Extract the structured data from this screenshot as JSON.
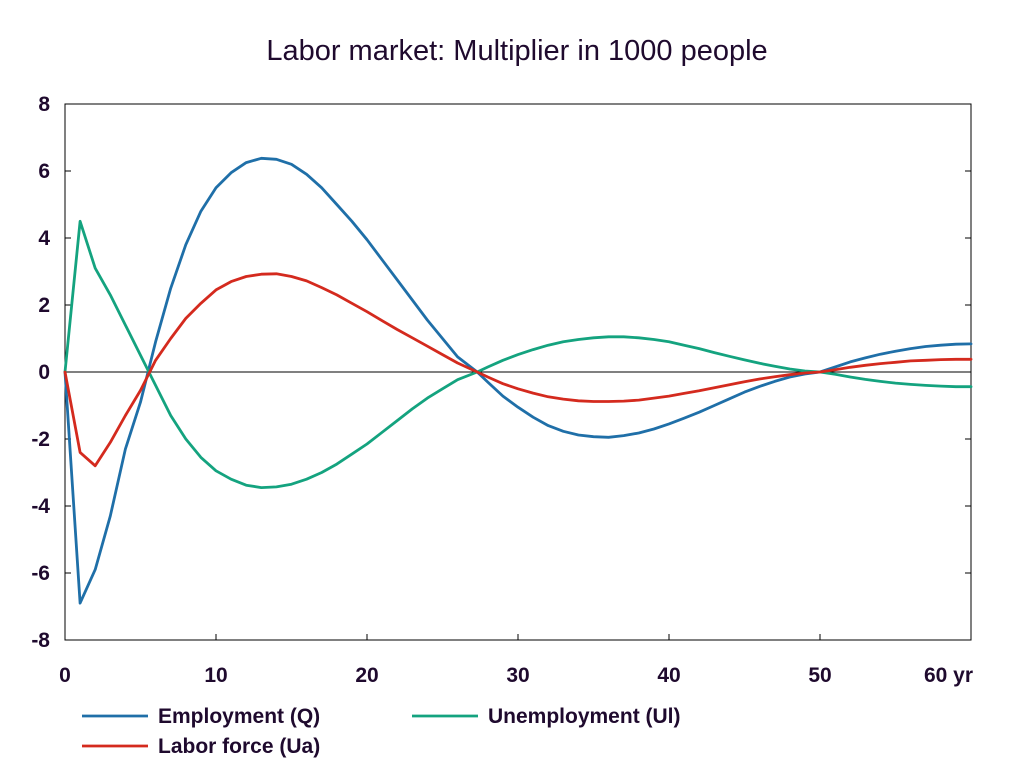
{
  "chart_data": {
    "type": "line",
    "title": "Labor market: Multiplier in 1000 people",
    "xlabel": "",
    "ylabel": "",
    "xlim": [
      0,
      60
    ],
    "ylim": [
      -8,
      8
    ],
    "x_ticks": [
      0,
      10,
      20,
      30,
      40,
      50,
      60
    ],
    "x_tick_labels": [
      "0",
      "10",
      "20",
      "30",
      "40",
      "50",
      "60 yr"
    ],
    "y_ticks": [
      -8,
      -6,
      -4,
      -2,
      0,
      2,
      4,
      6,
      8
    ],
    "y_tick_labels": [
      "-8",
      "-6",
      "-4",
      "-2",
      "0",
      "2",
      "4",
      "6",
      "8"
    ],
    "grid": false,
    "zero_line": true,
    "legend_position": "bottom",
    "series": [
      {
        "name": "Employment (Q)",
        "color": "#1f6fa8",
        "points": [
          [
            0,
            0
          ],
          [
            1,
            -6.9
          ],
          [
            2,
            -5.9
          ],
          [
            3,
            -4.3
          ],
          [
            4,
            -2.3
          ],
          [
            5,
            -0.9
          ],
          [
            6,
            0.9
          ],
          [
            7,
            2.5
          ],
          [
            8,
            3.8
          ],
          [
            9,
            4.8
          ],
          [
            10,
            5.5
          ],
          [
            11,
            5.95
          ],
          [
            12,
            6.25
          ],
          [
            13,
            6.38
          ],
          [
            14,
            6.35
          ],
          [
            15,
            6.2
          ],
          [
            16,
            5.9
          ],
          [
            17,
            5.5
          ],
          [
            18,
            5.0
          ],
          [
            19,
            4.5
          ],
          [
            20,
            3.95
          ],
          [
            21,
            3.35
          ],
          [
            22,
            2.75
          ],
          [
            23,
            2.15
          ],
          [
            24,
            1.55
          ],
          [
            25,
            1.0
          ],
          [
            26,
            0.45
          ],
          [
            27.3,
            0
          ],
          [
            28,
            -0.3
          ],
          [
            29,
            -0.72
          ],
          [
            30,
            -1.05
          ],
          [
            31,
            -1.35
          ],
          [
            32,
            -1.6
          ],
          [
            33,
            -1.77
          ],
          [
            34,
            -1.88
          ],
          [
            35,
            -1.93
          ],
          [
            36,
            -1.95
          ],
          [
            37,
            -1.9
          ],
          [
            38,
            -1.82
          ],
          [
            39,
            -1.7
          ],
          [
            40,
            -1.55
          ],
          [
            41,
            -1.38
          ],
          [
            42,
            -1.2
          ],
          [
            43,
            -1.0
          ],
          [
            44,
            -0.8
          ],
          [
            45,
            -0.6
          ],
          [
            46,
            -0.43
          ],
          [
            47,
            -0.28
          ],
          [
            48,
            -0.15
          ],
          [
            49,
            -0.06
          ],
          [
            50,
            0
          ],
          [
            51,
            0.15
          ],
          [
            52,
            0.3
          ],
          [
            53,
            0.42
          ],
          [
            54,
            0.53
          ],
          [
            55,
            0.62
          ],
          [
            56,
            0.7
          ],
          [
            57,
            0.76
          ],
          [
            58,
            0.8
          ],
          [
            59,
            0.83
          ],
          [
            60,
            0.84
          ]
        ]
      },
      {
        "name": "Unemployment (Ul)",
        "color": "#14a37f",
        "points": [
          [
            0,
            0
          ],
          [
            1,
            4.5
          ],
          [
            2,
            3.1
          ],
          [
            3,
            2.3
          ],
          [
            4,
            1.4
          ],
          [
            5,
            0.5
          ],
          [
            6,
            -0.4
          ],
          [
            7,
            -1.3
          ],
          [
            8,
            -2.0
          ],
          [
            9,
            -2.55
          ],
          [
            10,
            -2.95
          ],
          [
            11,
            -3.2
          ],
          [
            12,
            -3.38
          ],
          [
            13,
            -3.45
          ],
          [
            14,
            -3.43
          ],
          [
            15,
            -3.35
          ],
          [
            16,
            -3.2
          ],
          [
            17,
            -3.0
          ],
          [
            18,
            -2.75
          ],
          [
            19,
            -2.45
          ],
          [
            20,
            -2.15
          ],
          [
            21,
            -1.8
          ],
          [
            22,
            -1.45
          ],
          [
            23,
            -1.1
          ],
          [
            24,
            -0.78
          ],
          [
            25,
            -0.5
          ],
          [
            26,
            -0.23
          ],
          [
            27.3,
            0
          ],
          [
            28,
            0.15
          ],
          [
            29,
            0.35
          ],
          [
            30,
            0.52
          ],
          [
            31,
            0.67
          ],
          [
            32,
            0.8
          ],
          [
            33,
            0.9
          ],
          [
            34,
            0.97
          ],
          [
            35,
            1.02
          ],
          [
            36,
            1.05
          ],
          [
            37,
            1.05
          ],
          [
            38,
            1.02
          ],
          [
            39,
            0.97
          ],
          [
            40,
            0.9
          ],
          [
            41,
            0.8
          ],
          [
            42,
            0.7
          ],
          [
            43,
            0.58
          ],
          [
            44,
            0.47
          ],
          [
            45,
            0.36
          ],
          [
            46,
            0.26
          ],
          [
            47,
            0.17
          ],
          [
            48,
            0.09
          ],
          [
            49,
            0.03
          ],
          [
            50,
            0
          ],
          [
            51,
            -0.07
          ],
          [
            52,
            -0.15
          ],
          [
            53,
            -0.22
          ],
          [
            54,
            -0.28
          ],
          [
            55,
            -0.33
          ],
          [
            56,
            -0.37
          ],
          [
            57,
            -0.4
          ],
          [
            58,
            -0.42
          ],
          [
            59,
            -0.44
          ],
          [
            60,
            -0.44
          ]
        ]
      },
      {
        "name": "Labor force (Ua)",
        "color": "#d42a1e",
        "points": [
          [
            0,
            0
          ],
          [
            1,
            -2.4
          ],
          [
            2,
            -2.8
          ],
          [
            3,
            -2.1
          ],
          [
            4,
            -1.3
          ],
          [
            5,
            -0.55
          ],
          [
            6,
            0.35
          ],
          [
            7,
            1.0
          ],
          [
            8,
            1.6
          ],
          [
            9,
            2.05
          ],
          [
            10,
            2.45
          ],
          [
            11,
            2.7
          ],
          [
            12,
            2.85
          ],
          [
            13,
            2.92
          ],
          [
            14,
            2.93
          ],
          [
            15,
            2.85
          ],
          [
            16,
            2.72
          ],
          [
            17,
            2.52
          ],
          [
            18,
            2.3
          ],
          [
            19,
            2.05
          ],
          [
            20,
            1.8
          ],
          [
            21,
            1.53
          ],
          [
            22,
            1.27
          ],
          [
            23,
            1.02
          ],
          [
            24,
            0.77
          ],
          [
            25,
            0.52
          ],
          [
            26,
            0.27
          ],
          [
            27.3,
            0
          ],
          [
            28,
            -0.15
          ],
          [
            29,
            -0.35
          ],
          [
            30,
            -0.5
          ],
          [
            31,
            -0.63
          ],
          [
            32,
            -0.74
          ],
          [
            33,
            -0.81
          ],
          [
            34,
            -0.86
          ],
          [
            35,
            -0.88
          ],
          [
            36,
            -0.88
          ],
          [
            37,
            -0.87
          ],
          [
            38,
            -0.84
          ],
          [
            39,
            -0.78
          ],
          [
            40,
            -0.72
          ],
          [
            41,
            -0.64
          ],
          [
            42,
            -0.56
          ],
          [
            43,
            -0.47
          ],
          [
            44,
            -0.38
          ],
          [
            45,
            -0.29
          ],
          [
            46,
            -0.21
          ],
          [
            47,
            -0.14
          ],
          [
            48,
            -0.08
          ],
          [
            49,
            -0.03
          ],
          [
            50,
            0
          ],
          [
            51,
            0.07
          ],
          [
            52,
            0.14
          ],
          [
            53,
            0.2
          ],
          [
            54,
            0.25
          ],
          [
            55,
            0.29
          ],
          [
            56,
            0.33
          ],
          [
            57,
            0.35
          ],
          [
            58,
            0.37
          ],
          [
            59,
            0.38
          ],
          [
            60,
            0.38
          ]
        ]
      }
    ]
  }
}
